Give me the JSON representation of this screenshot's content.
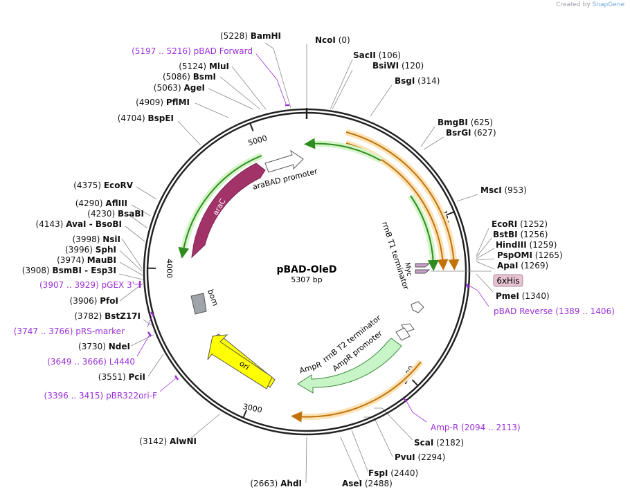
{
  "credit": {
    "prefix": "Created by",
    "brand": "SnapGene"
  },
  "plasmid": {
    "name": "pBAD-OleD",
    "size": "5307 bp",
    "length": 5307
  },
  "tick_marks": [
    {
      "pos": 1000,
      "label": "1000"
    },
    {
      "pos": 2000,
      "label": "2000"
    },
    {
      "pos": 3000,
      "label": "3000"
    },
    {
      "pos": 4000,
      "label": "4000"
    },
    {
      "pos": 5000,
      "label": "5000"
    }
  ],
  "sites": [
    {
      "name": "BamHI",
      "pos": "(5228)",
      "coord": 5228,
      "side": "L"
    },
    {
      "name": "NcoI",
      "pos": "(0)",
      "coord": 0,
      "side": "R"
    },
    {
      "name": "SacII",
      "pos": "(106)",
      "coord": 106,
      "side": "R"
    },
    {
      "name": "BsiWI",
      "pos": "(120)",
      "coord": 120,
      "side": "R"
    },
    {
      "name": "BsgI",
      "pos": "(314)",
      "coord": 314,
      "side": "R"
    },
    {
      "name": "BmgBI",
      "pos": "(625)",
      "coord": 625,
      "side": "R"
    },
    {
      "name": "BsrGI",
      "pos": "(627)",
      "coord": 627,
      "side": "R"
    },
    {
      "name": "MscI",
      "pos": "(953)",
      "coord": 953,
      "side": "R"
    },
    {
      "name": "EcoRI",
      "pos": "(1252)",
      "coord": 1252,
      "side": "R"
    },
    {
      "name": "BstBI",
      "pos": "(1256)",
      "coord": 1256,
      "side": "R"
    },
    {
      "name": "HindIII",
      "pos": "(1259)",
      "coord": 1259,
      "side": "R"
    },
    {
      "name": "PspOMI",
      "pos": "(1265)",
      "coord": 1265,
      "side": "R"
    },
    {
      "name": "ApaI",
      "pos": "(1269)",
      "coord": 1269,
      "side": "R"
    },
    {
      "name": "PmeI",
      "pos": "(1340)",
      "coord": 1340,
      "side": "R"
    },
    {
      "name": "ScaI",
      "pos": "(2182)",
      "coord": 2182,
      "side": "R"
    },
    {
      "name": "PvuI",
      "pos": "(2294)",
      "coord": 2294,
      "side": "R"
    },
    {
      "name": "FspI",
      "pos": "(2440)",
      "coord": 2440,
      "side": "R"
    },
    {
      "name": "AseI",
      "pos": "(2488)",
      "coord": 2488,
      "side": "R"
    },
    {
      "name": "AhdI",
      "pos": "(2663)",
      "coord": 2663,
      "side": "L"
    },
    {
      "name": "AlwNI",
      "pos": "(3142)",
      "coord": 3142,
      "side": "L"
    },
    {
      "name": "PciI",
      "pos": "(3551)",
      "coord": 3551,
      "side": "L"
    },
    {
      "name": "NdeI",
      "pos": "(3730)",
      "coord": 3730,
      "side": "L"
    },
    {
      "name": "BstZ17I",
      "pos": "(3782)",
      "coord": 3782,
      "side": "L"
    },
    {
      "name": "PfoI",
      "pos": "(3906)",
      "coord": 3906,
      "side": "L"
    },
    {
      "name": "BsmBI - Esp3I",
      "pos": "(3908)",
      "coord": 3908,
      "side": "L"
    },
    {
      "name": "MauBI",
      "pos": "(3974)",
      "coord": 3974,
      "side": "L"
    },
    {
      "name": "SphI",
      "pos": "(3996)",
      "coord": 3996,
      "side": "L"
    },
    {
      "name": "NsiI",
      "pos": "(3998)",
      "coord": 3998,
      "side": "L"
    },
    {
      "name": "AvaI - BsoBI",
      "pos": "(4143)",
      "coord": 4143,
      "side": "L"
    },
    {
      "name": "BsaBI",
      "pos": "(4230)",
      "coord": 4230,
      "side": "L"
    },
    {
      "name": "AflIII",
      "pos": "(4290)",
      "coord": 4290,
      "side": "L"
    },
    {
      "name": "EcoRV",
      "pos": "(4375)",
      "coord": 4375,
      "side": "L"
    },
    {
      "name": "BspEI",
      "pos": "(4704)",
      "coord": 4704,
      "side": "L"
    },
    {
      "name": "PflMI",
      "pos": "(4909)",
      "coord": 4909,
      "side": "L"
    },
    {
      "name": "AgeI",
      "pos": "(5063)",
      "coord": 5063,
      "side": "L"
    },
    {
      "name": "BsmI",
      "pos": "(5086)",
      "coord": 5086,
      "side": "L"
    },
    {
      "name": "MluI",
      "pos": "(5124)",
      "coord": 5124,
      "side": "L"
    }
  ],
  "primers": [
    {
      "name": "pBAD Forward",
      "pos": "(5197 .. 5216)",
      "coord": 5206,
      "side": "L"
    },
    {
      "name": "pBAD Reverse",
      "pos": "(1389 .. 1406)",
      "coord": 1397,
      "side": "R"
    },
    {
      "name": "Amp-R",
      "pos": "(2094 .. 2113)",
      "coord": 2103,
      "side": "R"
    },
    {
      "name": "pGEX 3'",
      "pos": "(3907 .. 3929)",
      "coord": 3918,
      "side": "L"
    },
    {
      "name": "pRS-marker",
      "pos": "(3747 .. 3766)",
      "coord": 3756,
      "side": "L"
    },
    {
      "name": "L4440",
      "pos": "(3649 .. 3666)",
      "coord": 3657,
      "side": "L"
    },
    {
      "name": "pBR322ori-F",
      "pos": "(3396 .. 3415)",
      "coord": 3405,
      "side": "L"
    }
  ],
  "features": [
    {
      "name": "araC",
      "kind": "cds",
      "color": "#a23369",
      "start": 4890,
      "end": 4220
    },
    {
      "name": "araBAD promoter",
      "kind": "promoter",
      "color": "#ffffff",
      "start": 5000,
      "end": 5240
    },
    {
      "name": "rrnB T1 terminator",
      "kind": "terminator",
      "color": "#ffffff"
    },
    {
      "name": "Myc",
      "kind": "tag",
      "color": "#c8a0c8"
    },
    {
      "name": "6xHis",
      "kind": "tag",
      "color": "#e6c3d2"
    },
    {
      "name": "rrnB T2 terminator",
      "kind": "terminator",
      "color": "#ffffff"
    },
    {
      "name": "AmpR promoter",
      "kind": "promoter",
      "color": "#ffffff"
    },
    {
      "name": "AmpR",
      "kind": "cds",
      "color": "#c8f5c8",
      "start": 2040,
      "end": 2600
    },
    {
      "name": "ori",
      "kind": "origin",
      "color": "#ffff00",
      "start": 3050,
      "end": 3420
    },
    {
      "name": "bom",
      "kind": "misc",
      "color": "#9ea4a9"
    }
  ],
  "colors": {
    "orf_orange": "#f5a623",
    "orf_green": "#2e8b20",
    "primer": "#9b30d9",
    "backbone": "#222222"
  }
}
